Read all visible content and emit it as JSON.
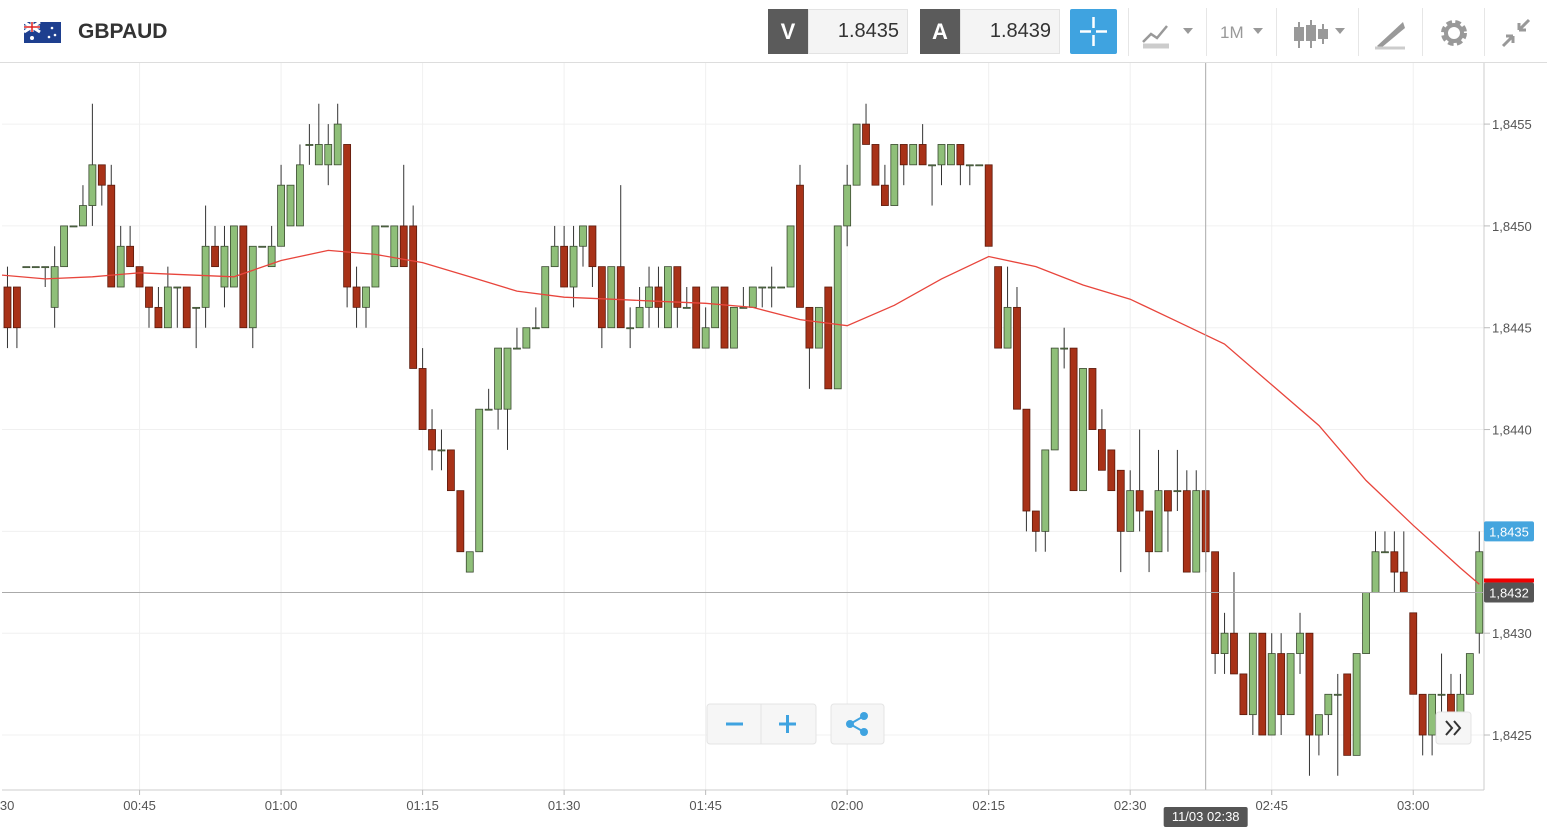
{
  "header": {
    "symbol": "GBPAUD",
    "bid_label": "V",
    "bid": "1.8435",
    "ask_label": "A",
    "ask": "1.8439",
    "timeframe": "1M"
  },
  "chart_data": {
    "type": "candlestick",
    "ylim": [
      1.84223,
      1.8458
    ],
    "yticks": [
      {
        "value": 1.8425,
        "label": "1,8425"
      },
      {
        "value": 1.843,
        "label": "1,8430"
      },
      {
        "value": 1.8435,
        "label": "1,8435"
      },
      {
        "value": 1.844,
        "label": "1,8440"
      },
      {
        "value": 1.8445,
        "label": "1,8445"
      },
      {
        "value": 1.845,
        "label": "1,8450"
      },
      {
        "value": 1.8455,
        "label": "1,8455"
      }
    ],
    "xlim": [
      0.42,
      157.5
    ],
    "xticks": [
      {
        "value": 0,
        "label": "00:30"
      },
      {
        "value": 15,
        "label": "00:45"
      },
      {
        "value": 30,
        "label": "01:00"
      },
      {
        "value": 45,
        "label": "01:15"
      },
      {
        "value": 60,
        "label": "01:30"
      },
      {
        "value": 75,
        "label": "01:45"
      },
      {
        "value": 90,
        "label": "02:00"
      },
      {
        "value": 105,
        "label": "02:15"
      },
      {
        "value": 120,
        "label": "02:30"
      },
      {
        "value": 135,
        "label": "02:45"
      },
      {
        "value": 150,
        "label": "03:00"
      }
    ],
    "grid": true,
    "up_color": "#8fbf79",
    "down_color": "#a83218",
    "ma_color": "#e8453c",
    "candles": [
      [
        1.8447,
        1.8448,
        1.8445,
        1.8445
      ],
      [
        1.8447,
        1.8448,
        1.8444,
        1.8445
      ],
      [
        1.8447,
        1.8447,
        1.8444,
        1.8445
      ],
      [
        1.8448,
        1.8448,
        1.8448,
        1.8448
      ],
      [
        1.8448,
        1.8448,
        1.8448,
        1.8448
      ],
      [
        1.8448,
        1.8448,
        1.8447,
        1.8448
      ],
      [
        1.8446,
        1.8449,
        1.8445,
        1.8448
      ],
      [
        1.8448,
        1.845,
        1.8448,
        1.845
      ],
      [
        1.845,
        1.845,
        1.845,
        1.845
      ],
      [
        1.845,
        1.8452,
        1.845,
        1.8451
      ],
      [
        1.8451,
        1.8456,
        1.845,
        1.8453
      ],
      [
        1.8453,
        1.8453,
        1.8451,
        1.8452
      ],
      [
        1.8452,
        1.8453,
        1.8447,
        1.8447
      ],
      [
        1.8447,
        1.845,
        1.8447,
        1.8449
      ],
      [
        1.8449,
        1.845,
        1.8448,
        1.8448
      ],
      [
        1.8448,
        1.8448,
        1.8447,
        1.8447
      ],
      [
        1.8447,
        1.8447,
        1.8445,
        1.8446
      ],
      [
        1.8446,
        1.8447,
        1.8445,
        1.8445
      ],
      [
        1.8445,
        1.8448,
        1.8445,
        1.8447
      ],
      [
        1.8447,
        1.8447,
        1.8445,
        1.8447
      ],
      [
        1.8447,
        1.8447,
        1.8445,
        1.8445
      ],
      [
        1.8446,
        1.8446,
        1.8444,
        1.8446
      ],
      [
        1.8446,
        1.8451,
        1.8445,
        1.8449
      ],
      [
        1.8449,
        1.845,
        1.8448,
        1.8448
      ],
      [
        1.8447,
        1.845,
        1.8446,
        1.8449
      ],
      [
        1.8447,
        1.845,
        1.8447,
        1.845
      ],
      [
        1.845,
        1.845,
        1.8445,
        1.8445
      ],
      [
        1.8445,
        1.8449,
        1.8444,
        1.8449
      ],
      [
        1.8449,
        1.8449,
        1.8449,
        1.8449
      ],
      [
        1.8448,
        1.845,
        1.8448,
        1.8449
      ],
      [
        1.8449,
        1.8453,
        1.8449,
        1.8452
      ],
      [
        1.845,
        1.8452,
        1.845,
        1.8452
      ],
      [
        1.845,
        1.8454,
        1.845,
        1.8453
      ],
      [
        1.8454,
        1.8455,
        1.8453,
        1.8454
      ],
      [
        1.8453,
        1.8456,
        1.8453,
        1.8454
      ],
      [
        1.8453,
        1.8455,
        1.8452,
        1.8454
      ],
      [
        1.8453,
        1.8456,
        1.8453,
        1.8455
      ],
      [
        1.8454,
        1.8454,
        1.8446,
        1.8447
      ],
      [
        1.8447,
        1.8448,
        1.8445,
        1.8446
      ],
      [
        1.8446,
        1.8447,
        1.8445,
        1.8447
      ],
      [
        1.8447,
        1.845,
        1.8447,
        1.845
      ],
      [
        1.845,
        1.845,
        1.845,
        1.845
      ],
      [
        1.8448,
        1.845,
        1.8448,
        1.845
      ],
      [
        1.845,
        1.8453,
        1.8448,
        1.8448
      ],
      [
        1.845,
        1.8451,
        1.8443,
        1.8443
      ],
      [
        1.8443,
        1.8444,
        1.844,
        1.844
      ],
      [
        1.844,
        1.8441,
        1.8438,
        1.8439
      ],
      [
        1.8439,
        1.844,
        1.8438,
        1.8439
      ],
      [
        1.8439,
        1.8439,
        1.8437,
        1.8437
      ],
      [
        1.8437,
        1.8437,
        1.8434,
        1.8434
      ],
      [
        1.8433,
        1.8434,
        1.8433,
        1.8434
      ],
      [
        1.8434,
        1.8441,
        1.8434,
        1.8441
      ],
      [
        1.8441,
        1.8442,
        1.8441,
        1.8441
      ],
      [
        1.8441,
        1.8444,
        1.844,
        1.8444
      ],
      [
        1.8441,
        1.8444,
        1.8439,
        1.8444
      ],
      [
        1.8444,
        1.8445,
        1.8444,
        1.8444
      ],
      [
        1.8444,
        1.8445,
        1.8444,
        1.8445
      ],
      [
        1.8445,
        1.8446,
        1.8445,
        1.8445
      ],
      [
        1.8445,
        1.8448,
        1.8445,
        1.8448
      ],
      [
        1.8448,
        1.845,
        1.8448,
        1.8449
      ],
      [
        1.8449,
        1.845,
        1.8447,
        1.8447
      ],
      [
        1.8447,
        1.845,
        1.8446,
        1.8449
      ],
      [
        1.8449,
        1.845,
        1.8448,
        1.845
      ],
      [
        1.845,
        1.845,
        1.8447,
        1.8448
      ],
      [
        1.8448,
        1.8448,
        1.8444,
        1.8445
      ],
      [
        1.8445,
        1.8448,
        1.8445,
        1.8448
      ],
      [
        1.8448,
        1.8452,
        1.8445,
        1.8445
      ],
      [
        1.8445,
        1.8446,
        1.8444,
        1.8445
      ],
      [
        1.8445,
        1.8447,
        1.8445,
        1.8446
      ],
      [
        1.8446,
        1.8448,
        1.8445,
        1.8447
      ],
      [
        1.8447,
        1.8448,
        1.8445,
        1.8446
      ],
      [
        1.8445,
        1.8448,
        1.8445,
        1.8448
      ],
      [
        1.8448,
        1.8448,
        1.8445,
        1.8446
      ],
      [
        1.8446,
        1.8447,
        1.8446,
        1.8446
      ],
      [
        1.8447,
        1.8447,
        1.8444,
        1.8444
      ],
      [
        1.8444,
        1.8446,
        1.8444,
        1.8445
      ],
      [
        1.8445,
        1.8447,
        1.8445,
        1.8447
      ],
      [
        1.8447,
        1.8447,
        1.8444,
        1.8444
      ],
      [
        1.8444,
        1.8446,
        1.8444,
        1.8446
      ],
      [
        1.8446,
        1.8447,
        1.8446,
        1.8446
      ],
      [
        1.8446,
        1.8447,
        1.8446,
        1.8447
      ],
      [
        1.8447,
        1.8447,
        1.8446,
        1.8447
      ],
      [
        1.8447,
        1.8448,
        1.8446,
        1.8447
      ],
      [
        1.8447,
        1.8447,
        1.8447,
        1.8447
      ],
      [
        1.8447,
        1.845,
        1.8447,
        1.845
      ],
      [
        1.8452,
        1.8453,
        1.8446,
        1.8446
      ],
      [
        1.8446,
        1.8446,
        1.8442,
        1.8444
      ],
      [
        1.8444,
        1.8446,
        1.8444,
        1.8446
      ],
      [
        1.8447,
        1.8447,
        1.8442,
        1.8442
      ],
      [
        1.8442,
        1.845,
        1.8442,
        1.845
      ],
      [
        1.845,
        1.8453,
        1.8449,
        1.8452
      ],
      [
        1.8452,
        1.8455,
        1.8452,
        1.8455
      ],
      [
        1.8455,
        1.8456,
        1.8454,
        1.8454
      ],
      [
        1.8454,
        1.8454,
        1.8452,
        1.8452
      ],
      [
        1.8452,
        1.8453,
        1.8451,
        1.8451
      ],
      [
        1.8451,
        1.8454,
        1.8451,
        1.8454
      ],
      [
        1.8454,
        1.8454,
        1.8452,
        1.8453
      ],
      [
        1.8453,
        1.8454,
        1.8453,
        1.8454
      ],
      [
        1.8454,
        1.8455,
        1.8453,
        1.8453
      ],
      [
        1.8453,
        1.8453,
        1.8451,
        1.8453
      ],
      [
        1.8453,
        1.8454,
        1.8452,
        1.8454
      ],
      [
        1.8453,
        1.8454,
        1.8453,
        1.8454
      ],
      [
        1.8454,
        1.8454,
        1.8452,
        1.8453
      ],
      [
        1.8453,
        1.8453,
        1.8452,
        1.8453
      ],
      [
        1.8453,
        1.8453,
        1.8453,
        1.8453
      ],
      [
        1.8453,
        1.8453,
        1.8449,
        1.8449
      ],
      [
        1.8448,
        1.8448,
        1.8444,
        1.8444
      ],
      [
        1.8444,
        1.8448,
        1.8444,
        1.8446
      ],
      [
        1.8446,
        1.8447,
        1.8441,
        1.8441
      ],
      [
        1.8441,
        1.8441,
        1.8435,
        1.8436
      ],
      [
        1.8436,
        1.8436,
        1.8434,
        1.8435
      ],
      [
        1.8435,
        1.8439,
        1.8434,
        1.8439
      ],
      [
        1.8439,
        1.8444,
        1.8439,
        1.8444
      ],
      [
        1.8444,
        1.8445,
        1.8443,
        1.8444
      ],
      [
        1.8444,
        1.8444,
        1.8437,
        1.8437
      ],
      [
        1.8437,
        1.8443,
        1.8437,
        1.8443
      ],
      [
        1.8443,
        1.8443,
        1.844,
        1.844
      ],
      [
        1.844,
        1.8441,
        1.8438,
        1.8438
      ],
      [
        1.8439,
        1.8439,
        1.8437,
        1.8437
      ],
      [
        1.8438,
        1.8438,
        1.8433,
        1.8435
      ],
      [
        1.8435,
        1.8438,
        1.8435,
        1.8437
      ],
      [
        1.8437,
        1.844,
        1.8435,
        1.8436
      ],
      [
        1.8436,
        1.8436,
        1.8433,
        1.8434
      ],
      [
        1.8434,
        1.8439,
        1.8434,
        1.8437
      ],
      [
        1.8437,
        1.8437,
        1.8434,
        1.8436
      ],
      [
        1.8437,
        1.8439,
        1.8436,
        1.8437
      ],
      [
        1.8437,
        1.8438,
        1.8433,
        1.8433
      ],
      [
        1.8433,
        1.8438,
        1.8433,
        1.8437
      ],
      [
        1.8437,
        1.8437,
        1.8433,
        1.8434
      ],
      [
        1.8434,
        1.8434,
        1.8428,
        1.8429
      ],
      [
        1.8429,
        1.8431,
        1.8428,
        1.843
      ],
      [
        1.843,
        1.8433,
        1.8428,
        1.8428
      ],
      [
        1.8428,
        1.8428,
        1.8426,
        1.8426
      ],
      [
        1.8426,
        1.843,
        1.8425,
        1.843
      ],
      [
        1.843,
        1.843,
        1.8425,
        1.8425
      ],
      [
        1.8425,
        1.843,
        1.8425,
        1.8429
      ],
      [
        1.8429,
        1.843,
        1.8425,
        1.8426
      ],
      [
        1.8426,
        1.8429,
        1.8426,
        1.8429
      ],
      [
        1.8429,
        1.8431,
        1.8428,
        1.843
      ],
      [
        1.843,
        1.843,
        1.8423,
        1.8425
      ],
      [
        1.8425,
        1.8426,
        1.8424,
        1.8426
      ],
      [
        1.8426,
        1.8427,
        1.8425,
        1.8427
      ],
      [
        1.8427,
        1.8428,
        1.8423,
        1.8427
      ],
      [
        1.8428,
        1.8428,
        1.8424,
        1.8424
      ],
      [
        1.8424,
        1.8429,
        1.8424,
        1.8429
      ],
      [
        1.8429,
        1.8432,
        1.8429,
        1.8432
      ],
      [
        1.8432,
        1.8435,
        1.8432,
        1.8434
      ],
      [
        1.8434,
        1.8435,
        1.8434,
        1.8434
      ],
      [
        1.8434,
        1.8435,
        1.8432,
        1.8433
      ],
      [
        1.8433,
        1.8435,
        1.8432,
        1.8432
      ],
      [
        1.8431,
        1.8431,
        1.8427,
        1.8427
      ],
      [
        1.8427,
        1.8427,
        1.8424,
        1.8425
      ],
      [
        1.8425,
        1.8427,
        1.8424,
        1.8427
      ],
      [
        1.8427,
        1.8429,
        1.8426,
        1.8427
      ],
      [
        1.8427,
        1.8428,
        1.8425,
        1.8426
      ],
      [
        1.8426,
        1.8428,
        1.8425,
        1.8427
      ],
      [
        1.8427,
        1.8429,
        1.8427,
        1.8429
      ],
      [
        1.843,
        1.8435,
        1.8429,
        1.8434
      ]
    ],
    "ma_x": [
      0,
      5,
      10,
      15,
      20,
      25,
      30,
      35,
      40,
      45,
      50,
      55,
      60,
      65,
      70,
      75,
      80,
      85,
      90,
      95,
      100,
      105,
      110,
      115,
      120,
      125,
      130,
      135,
      140,
      145,
      150,
      155,
      157
    ],
    "ma": [
      1.84476,
      1.84474,
      1.84475,
      1.84477,
      1.84476,
      1.84475,
      1.84483,
      1.84488,
      1.84486,
      1.84482,
      1.84475,
      1.84468,
      1.84465,
      1.84464,
      1.84463,
      1.84462,
      1.8446,
      1.84454,
      1.84451,
      1.84461,
      1.84474,
      1.84485,
      1.8448,
      1.84471,
      1.84464,
      1.84453,
      1.84442,
      1.84422,
      1.84402,
      1.84375,
      1.84353,
      1.84332,
      1.84324
    ],
    "price_label": {
      "value": 1.8435,
      "label": "1,8435"
    },
    "crosshair": {
      "candle": 128,
      "x_label": "11/03 02:38",
      "y": {
        "value": 1.8432,
        "label": "1,8432"
      }
    }
  }
}
